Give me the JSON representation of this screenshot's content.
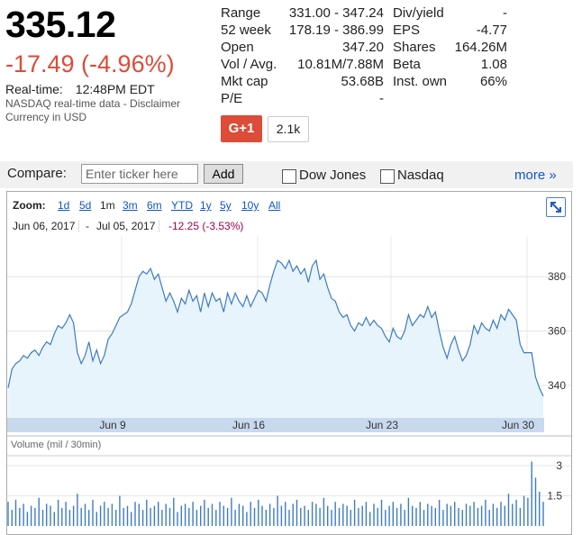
{
  "quote": {
    "price": "335.12",
    "change": "-17.49 (-4.96%)",
    "realtime_label": "Real-time:",
    "realtime_time": "12:48PM EDT",
    "source": "NASDAQ real-time data - Disclaimer",
    "currency": "Currency in USD"
  },
  "stats_left": [
    {
      "label": "Range",
      "value": "331.00 - 347.24"
    },
    {
      "label": "52 week",
      "value": "178.19 - 386.99"
    },
    {
      "label": "Open",
      "value": "347.20"
    },
    {
      "label": "Vol / Avg.",
      "value": "10.81M/7.88M"
    },
    {
      "label": "Mkt cap",
      "value": "53.68B"
    },
    {
      "label": "P/E",
      "value": "-"
    }
  ],
  "stats_right": [
    {
      "label": "Div/yield",
      "value": "-"
    },
    {
      "label": "EPS",
      "value": "-4.77"
    },
    {
      "label": "Shares",
      "value": "164.26M"
    },
    {
      "label": "Beta",
      "value": "1.08"
    },
    {
      "label": "Inst. own",
      "value": "66%"
    }
  ],
  "social": {
    "gplus_label": "G+1",
    "count": "2.1k"
  },
  "compare": {
    "label": "Compare:",
    "placeholder": "Enter ticker here",
    "add_label": "Add",
    "dow_label": "Dow Jones",
    "nasdaq_label": "Nasdaq",
    "more_label": "more »"
  },
  "zoom": {
    "label": "Zoom:",
    "options": [
      "1d",
      "5d",
      "1m",
      "3m",
      "6m",
      "YTD",
      "1y",
      "5y",
      "10y",
      "All"
    ],
    "selected": "1m"
  },
  "range": {
    "from": "Jun 06, 2017",
    "separator": "-",
    "to": "Jul 05, 2017",
    "change": "-12.25 (-3.53%)"
  },
  "colors": {
    "line": "#3d7bc4",
    "fill": "#e8f4fb",
    "negative": "#dd4b39",
    "link": "#1155cc"
  },
  "chart_data": {
    "type": "line",
    "x_ticks": [
      "Jun 9",
      "Jun 16",
      "Jun 23",
      "Jun 30"
    ],
    "y_ticks": [
      "380",
      "360",
      "340"
    ],
    "ylim": [
      328,
      395
    ],
    "grid": true,
    "price_series": [
      339,
      346,
      348,
      349,
      351,
      350,
      352,
      353,
      351,
      354,
      356,
      355,
      359,
      362,
      361,
      363,
      366,
      363,
      352,
      348,
      351,
      356,
      349,
      353,
      348,
      351,
      357,
      359,
      362,
      365,
      366,
      367,
      370,
      375,
      380,
      382,
      381,
      383,
      379,
      381,
      376,
      371,
      374,
      371,
      367,
      372,
      370,
      375,
      371,
      373,
      367,
      374,
      369,
      374,
      371,
      372,
      367,
      374,
      370,
      374,
      371,
      369,
      373,
      369,
      372,
      375,
      374,
      371,
      377,
      382,
      386,
      385,
      383,
      386,
      382,
      384,
      381,
      383,
      378,
      384,
      386,
      379,
      381,
      376,
      372,
      371,
      367,
      365,
      366,
      362,
      360,
      363,
      362,
      365,
      362,
      364,
      362,
      361,
      358,
      356,
      361,
      358,
      357,
      360,
      366,
      362,
      364,
      366,
      365,
      369,
      365,
      367,
      360,
      354,
      350,
      355,
      358,
      353,
      349,
      351,
      355,
      362,
      359,
      363,
      361,
      360,
      364,
      361,
      366,
      364,
      368,
      366,
      364,
      355,
      352,
      352,
      352,
      343,
      339,
      336
    ],
    "volume_label": "Volume (mil / 30min)",
    "volume_ticks": [
      "3",
      "1.5"
    ],
    "volume_ylim": [
      0,
      3.4
    ],
    "volume_series": [
      1.2,
      0.8,
      1.3,
      0.9,
      1.1,
      0.7,
      1.0,
      0.9,
      1.4,
      0.8,
      1.1,
      1.0,
      0.7,
      1.3,
      0.9,
      1.2,
      0.8,
      1.0,
      1.6,
      0.9,
      1.1,
      0.8,
      1.3,
      0.7,
      1.0,
      1.2,
      0.9,
      1.1,
      0.8,
      1.5,
      0.9,
      1.0,
      0.7,
      1.2,
      1.1,
      0.8,
      1.3,
      0.9,
      1.0,
      1.2,
      0.8,
      1.1,
      0.9,
      1.4,
      0.7,
      1.0,
      1.1,
      0.9,
      1.2,
      0.8,
      1.0,
      1.3,
      0.9,
      1.1,
      0.8,
      1.2,
      1.0,
      0.9,
      1.4,
      0.8,
      1.1,
      1.0,
      0.7,
      1.2,
      0.9,
      1.3,
      1.0,
      0.8,
      1.1,
      0.9,
      1.5,
      1.0,
      1.2,
      0.8,
      1.1,
      1.3,
      0.9,
      1.0,
      0.8,
      1.2,
      1.1,
      0.9,
      1.4,
      1.0,
      0.8,
      1.2,
      0.9,
      1.1,
      1.0,
      0.8,
      1.3,
      0.9,
      1.0,
      1.2,
      0.7,
      1.1,
      0.9,
      1.3,
      0.8,
      1.0,
      1.2,
      0.9,
      1.1,
      0.8,
      1.4,
      1.0,
      0.9,
      1.2,
      0.8,
      1.1,
      1.0,
      0.9,
      1.3,
      0.8,
      1.1,
      1.0,
      1.2,
      0.9,
      0.8,
      1.1,
      1.0,
      1.2,
      0.9,
      1.0,
      1.3,
      0.8,
      1.1,
      0.9,
      1.2,
      1.0,
      1.6,
      1.1,
      1.3,
      0.9,
      1.5,
      1.4,
      3.2,
      2.4,
      1.7,
      1.2
    ]
  }
}
